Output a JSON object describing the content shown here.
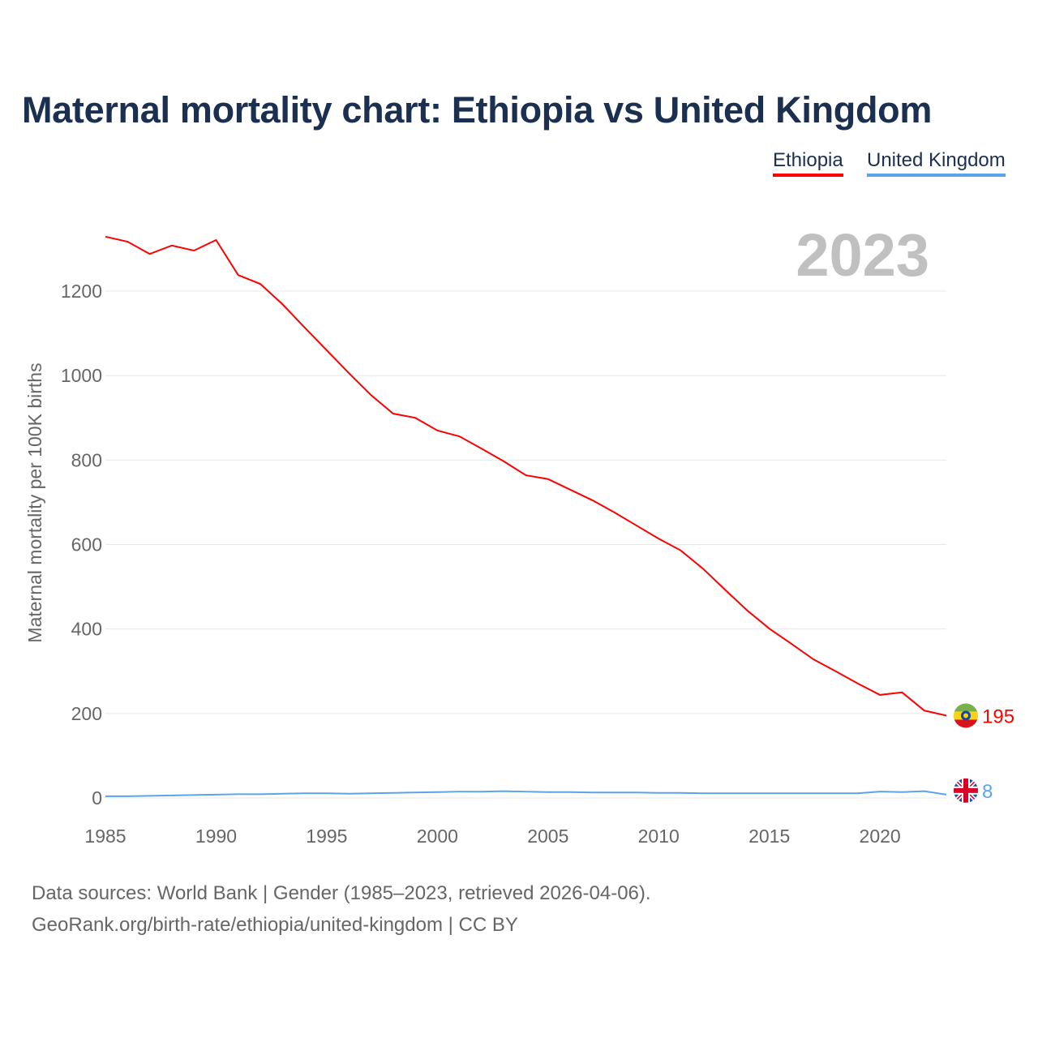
{
  "chart_data": {
    "type": "line",
    "title": "Maternal mortality chart: Ethiopia vs United Kingdom",
    "ylabel": "Maternal mortality per 100K births",
    "xlabel": "",
    "year_label": "2023",
    "x": [
      1985,
      1986,
      1987,
      1988,
      1989,
      1990,
      1991,
      1992,
      1993,
      1994,
      1995,
      1996,
      1997,
      1998,
      1999,
      2000,
      2001,
      2002,
      2003,
      2004,
      2005,
      2006,
      2007,
      2008,
      2009,
      2010,
      2011,
      2012,
      2013,
      2014,
      2015,
      2016,
      2017,
      2018,
      2019,
      2020,
      2021,
      2022,
      2023
    ],
    "series": [
      {
        "name": "Ethiopia",
        "color": "#ff0000",
        "end_label": "195",
        "values": [
          1329,
          1317,
          1288,
          1308,
          1296,
          1321,
          1238,
          1217,
          1169,
          1114,
          1060,
          1006,
          954,
          910,
          900,
          870,
          856,
          827,
          797,
          764,
          755,
          730,
          705,
          676,
          645,
          614,
          586,
          543,
          493,
          444,
          401,
          365,
          328,
          300,
          271,
          244,
          250,
          207,
          195
        ]
      },
      {
        "name": "United Kingdom",
        "color": "#5ba4ec",
        "end_label": "8",
        "values": [
          4,
          4,
          5,
          6,
          7,
          8,
          9,
          9,
          10,
          11,
          11,
          10,
          11,
          12,
          13,
          14,
          15,
          15,
          16,
          15,
          14,
          14,
          13,
          13,
          13,
          12,
          12,
          11,
          11,
          11,
          11,
          11,
          11,
          11,
          11,
          15,
          14,
          16,
          8
        ]
      }
    ],
    "xticks": [
      1985,
      1990,
      1995,
      2000,
      2005,
      2010,
      2015,
      2020
    ],
    "yticks": [
      0,
      200,
      400,
      600,
      800,
      1000,
      1200
    ],
    "xlim": [
      1985,
      2023
    ],
    "ylim": [
      0,
      1330
    ],
    "grid": true,
    "legend": "top-right"
  },
  "footer": {
    "line1": "Data sources: World Bank | Gender (1985–2023, retrieved 2026-04-06).",
    "line2": "GeoRank.org/birth-rate/ethiopia/united-kingdom | CC BY"
  }
}
